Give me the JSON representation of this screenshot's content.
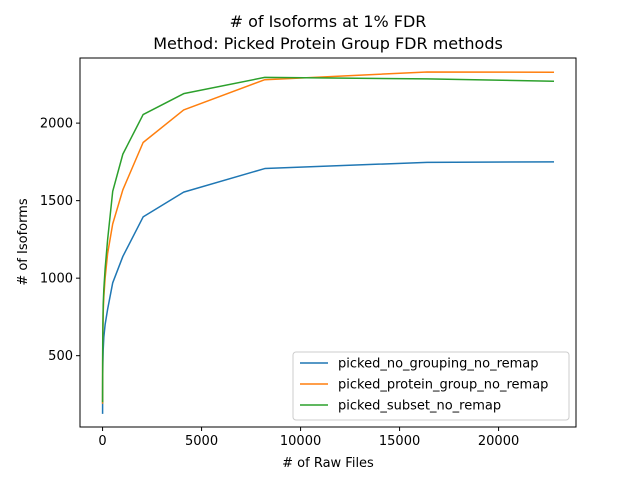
{
  "chart_data": {
    "type": "line",
    "title_line1": "# of Isoforms at 1% FDR",
    "title_line2": "Method: Picked Protein Group FDR methods",
    "xlabel": "# of Raw Files",
    "ylabel": "# of Isoforms",
    "xlim": [
      -1140,
      23910
    ],
    "ylim": [
      40,
      2420
    ],
    "xticks": [
      0,
      5000,
      10000,
      15000,
      20000
    ],
    "yticks": [
      500,
      1000,
      1500,
      2000
    ],
    "grid": false,
    "legend_position": "lower-right",
    "series": [
      {
        "name": "picked_no_grouping_no_remap",
        "color": "#1f77b4",
        "x": [
          1,
          2,
          4,
          8,
          16,
          32,
          64,
          128,
          256,
          512,
          1024,
          2048,
          4096,
          8192,
          16384,
          22800
        ],
        "y": [
          125,
          200,
          280,
          370,
          450,
          540,
          620,
          700,
          800,
          970,
          1140,
          1395,
          1555,
          1707,
          1747,
          1750
        ]
      },
      {
        "name": "picked_protein_group_no_remap",
        "color": "#ff7f0e",
        "x": [
          1,
          2,
          4,
          8,
          16,
          32,
          64,
          128,
          256,
          512,
          1024,
          2048,
          4096,
          8192,
          16384,
          22800
        ],
        "y": [
          190,
          300,
          420,
          540,
          650,
          780,
          880,
          1000,
          1160,
          1350,
          1570,
          1875,
          2085,
          2280,
          2330,
          2328
        ]
      },
      {
        "name": "picked_subset_no_remap",
        "color": "#2ca02c",
        "x": [
          1,
          2,
          4,
          8,
          16,
          32,
          64,
          128,
          256,
          512,
          1024,
          2048,
          4096,
          8192,
          16384,
          22800
        ],
        "y": [
          200,
          320,
          450,
          580,
          700,
          830,
          930,
          1060,
          1250,
          1560,
          1800,
          2055,
          2190,
          2295,
          2285,
          2270
        ]
      }
    ]
  }
}
